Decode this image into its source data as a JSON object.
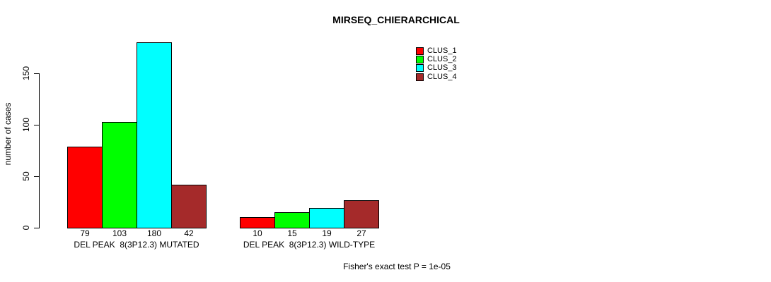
{
  "chart_data": {
    "type": "bar",
    "title": "MIRSEQ_CHIERARCHICAL",
    "ylabel": "number of cases",
    "xlabel": "",
    "annotation": "Fisher's exact test P = 1e-05",
    "ylim": [
      0,
      183
    ],
    "yticks": [
      0,
      50,
      100,
      150
    ],
    "grid": false,
    "legend_position": "top-right-inside",
    "bar_borders": true,
    "categories": [
      "DEL PEAK  8(3P12.3) MUTATED",
      "DEL PEAK  8(3P12.3) WILD-TYPE"
    ],
    "series": [
      {
        "name": "CLUS_1",
        "color": "#FF0000",
        "values": [
          79,
          10
        ]
      },
      {
        "name": "CLUS_2",
        "color": "#00FF00",
        "values": [
          103,
          15
        ]
      },
      {
        "name": "CLUS_3",
        "color": "#00FFFF",
        "values": [
          180,
          19
        ]
      },
      {
        "name": "CLUS_4",
        "color": "#A52A2A",
        "values": [
          42,
          27
        ]
      }
    ]
  },
  "colors": {
    "background": "#FFFFFF",
    "axis": "#000000",
    "text": "#000000"
  }
}
